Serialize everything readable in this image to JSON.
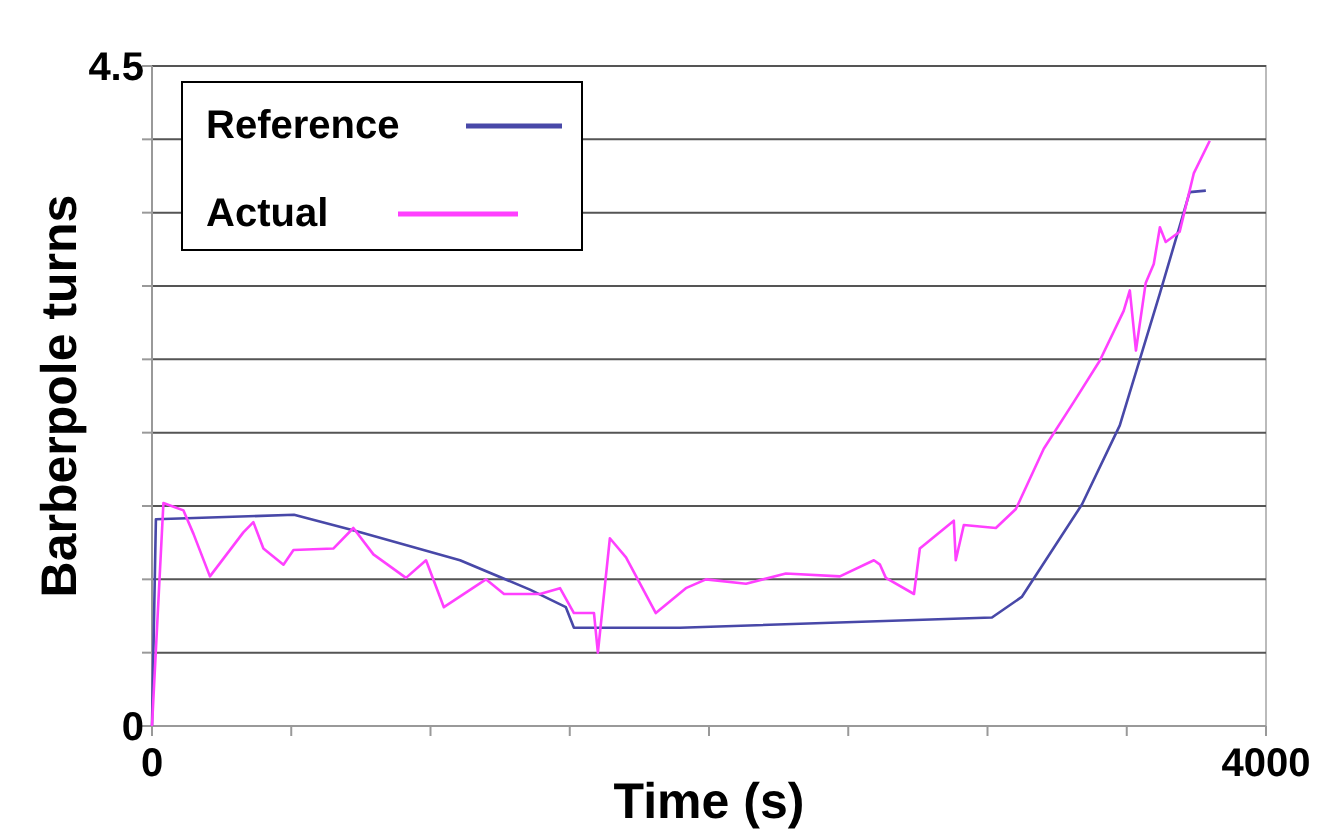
{
  "chart_data": {
    "type": "line",
    "xlabel": "Time (s)",
    "ylabel": "Barberpole turns",
    "xlim": [
      0,
      4000
    ],
    "ylim": [
      0,
      4.5
    ],
    "xticks": [
      0,
      {
        "value": 500,
        "label": null
      },
      {
        "value": 1000,
        "label": null
      },
      {
        "value": 1500,
        "label": null
      },
      {
        "value": 2000,
        "label": null
      },
      {
        "value": 2500,
        "label": null
      },
      {
        "value": 3000,
        "label": null
      },
      {
        "value": 3500,
        "label": null
      },
      4000
    ],
    "yticks": [
      0,
      {
        "value": 0.5,
        "label": null
      },
      {
        "value": 1,
        "label": null
      },
      {
        "value": 1.5,
        "label": null
      },
      {
        "value": 2,
        "label": null
      },
      {
        "value": 2.5,
        "label": null
      },
      {
        "value": 3,
        "label": null
      },
      {
        "value": 3.5,
        "label": null
      },
      {
        "value": 4,
        "label": null
      },
      4.5
    ],
    "grid": "y",
    "legend": "top left",
    "marker": "none",
    "line_style": "solid",
    "series": [
      {
        "name": "Reference",
        "color": "#4848a8",
        "x": [
          0,
          14,
          510,
          732,
          1106,
          1357,
          1486,
          1515,
          1896,
          3016,
          3123,
          3339,
          3475,
          3619,
          3726,
          3784
        ],
        "values": [
          0,
          1.41,
          1.44,
          1.33,
          1.13,
          0.93,
          0.81,
          0.67,
          0.67,
          0.74,
          0.88,
          1.51,
          2.05,
          2.95,
          3.64,
          3.65
        ]
      },
      {
        "name": "Actual",
        "color": "#ff40ff",
        "x": [
          0,
          41,
          113,
          149,
          208,
          328,
          364,
          400,
          472,
          508,
          651,
          723,
          795,
          912,
          984,
          1048,
          1199,
          1264,
          1393,
          1465,
          1515,
          1587,
          1601,
          1644,
          1702,
          1809,
          1917,
          1989,
          2133,
          2276,
          2470,
          2592,
          2614,
          2635,
          2736,
          2757,
          2879,
          2886,
          2915,
          3030,
          3102,
          3202,
          3310,
          3403,
          3489,
          3511,
          3533,
          3568,
          3597,
          3619,
          3640,
          3690,
          3741,
          3798
        ],
        "values": [
          0,
          1.52,
          1.47,
          1.31,
          1.02,
          1.32,
          1.39,
          1.21,
          1.1,
          1.2,
          1.21,
          1.35,
          1.17,
          1.01,
          1.13,
          0.81,
          1.0,
          0.9,
          0.9,
          0.94,
          0.77,
          0.77,
          0.5,
          1.28,
          1.15,
          0.77,
          0.94,
          1.0,
          0.97,
          1.04,
          1.02,
          1.13,
          1.1,
          1.01,
          0.9,
          1.21,
          1.4,
          1.13,
          1.37,
          1.35,
          1.48,
          1.89,
          2.21,
          2.49,
          2.83,
          2.97,
          2.56,
          3.02,
          3.15,
          3.4,
          3.3,
          3.37,
          3.77,
          3.99
        ]
      }
    ]
  }
}
